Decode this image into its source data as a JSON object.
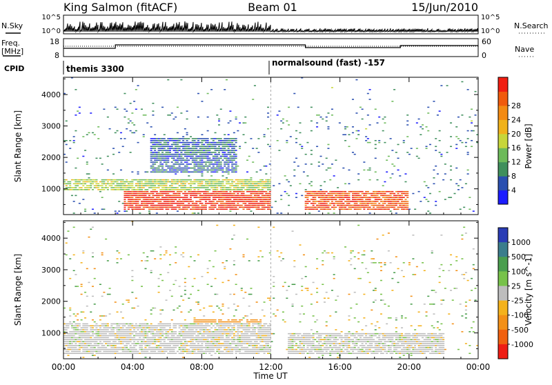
{
  "header": {
    "station": "King Salmon (fitACF)",
    "beam": "Beam 01",
    "date": "15/Jun/2010"
  },
  "summary_panels": {
    "noise": {
      "left_label": "N.Sky",
      "right_label": "N.Search",
      "left_ticks": [
        "10^5",
        "10^0"
      ],
      "right_ticks": [
        "10^5",
        "10^0"
      ]
    },
    "frequency": {
      "left_label_line1": "Freq.",
      "left_label_line2": "[MHz]",
      "right_label": "Nave",
      "left_ticks": [
        "18",
        "8"
      ],
      "right_ticks": [
        "60",
        "0"
      ]
    },
    "cpid": {
      "label": "CPID",
      "segments": [
        {
          "text": "themis 3300",
          "start_hour": 0
        },
        {
          "text": "normalsound (fast) -157",
          "start_hour": 12
        }
      ]
    }
  },
  "colors": {
    "power_scale": [
      "#1c1cff",
      "#2a4fb0",
      "#3f8f5c",
      "#6dba5a",
      "#c7d63a",
      "#f0b21b",
      "#f38a12",
      "#f05a0c",
      "#f01e12"
    ],
    "velocity_scale": [
      "#2a3cb5",
      "#3b7d8c",
      "#4a9e4e",
      "#77c24a",
      "#bdbdbd",
      "#f4b21c",
      "#f39017",
      "#f0600f",
      "#ee1d14"
    ]
  },
  "chart_data": [
    {
      "type": "heatmap",
      "title": "",
      "xlabel": "Time UT",
      "ylabel": "Slant Range [km]",
      "x_ticks": [
        "00:00",
        "04:00",
        "08:00",
        "12:00",
        "16:00",
        "20:00",
        "00:00"
      ],
      "x_range_hours": [
        0,
        24
      ],
      "y_ticks": [
        1000,
        2000,
        3000,
        4000
      ],
      "ylim": [
        180,
        4550
      ],
      "colorbar": {
        "label": "Power [dB]",
        "ticks": [
          "4",
          "8",
          "12",
          "16",
          "20",
          "24",
          "28"
        ],
        "range": [
          0,
          30
        ]
      },
      "features": [
        {
          "name": "strong near-range scatter",
          "time_hours": [
            3.5,
            12
          ],
          "range_km": [
            300,
            900
          ],
          "power_db": 28
        },
        {
          "name": "strong near-range scatter",
          "time_hours": [
            14,
            20
          ],
          "range_km": [
            300,
            900
          ],
          "power_db": 26
        },
        {
          "name": "mid-range scatter",
          "time_hours": [
            0,
            12
          ],
          "range_km": [
            900,
            1300
          ],
          "power_db": 14
        },
        {
          "name": "diffuse far-range echoes",
          "time_hours": [
            5,
            10
          ],
          "range_km": [
            1500,
            2600
          ],
          "power_db": 6
        }
      ]
    },
    {
      "type": "heatmap",
      "title": "",
      "xlabel": "Time UT",
      "ylabel": "Slant Range [km]",
      "x_ticks": [
        "00:00",
        "04:00",
        "08:00",
        "12:00",
        "16:00",
        "20:00",
        "00:00"
      ],
      "x_range_hours": [
        0,
        24
      ],
      "y_ticks": [
        1000,
        2000,
        3000,
        4000
      ],
      "ylim": [
        180,
        4550
      ],
      "colorbar": {
        "label": "Velocity [m s^-1]",
        "ticks": [
          "1000",
          "500",
          "100",
          "25",
          "-25",
          "-100",
          "-500",
          "-1000"
        ],
        "range": [
          -1000,
          1000
        ]
      },
      "features": [
        {
          "name": "ground scatter (low velocity)",
          "time_hours": [
            0,
            12
          ],
          "range_km": [
            300,
            1300
          ],
          "velocity": 0
        },
        {
          "name": "ionospheric flow away",
          "time_hours": [
            7.5,
            11.5
          ],
          "range_km": [
            500,
            1400
          ],
          "velocity": -150
        },
        {
          "name": "ground scatter (low velocity)",
          "time_hours": [
            13,
            22
          ],
          "range_km": [
            300,
            1000
          ],
          "velocity": 0
        }
      ]
    }
  ]
}
